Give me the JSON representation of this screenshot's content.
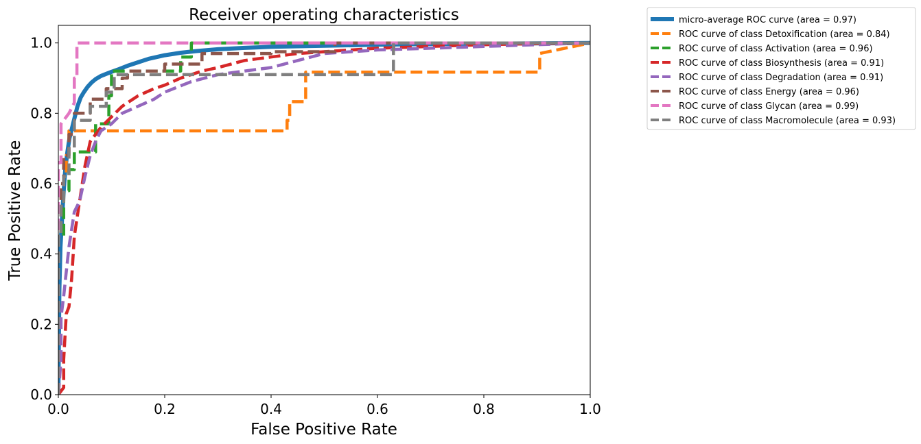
{
  "chart_data": {
    "type": "line",
    "title": "Receiver operating characteristics",
    "xlabel": "False Positive Rate",
    "ylabel": "True Positive Rate",
    "xlim": [
      0.0,
      1.0
    ],
    "ylim": [
      0.0,
      1.05
    ],
    "xticks": [
      "0.0",
      "0.2",
      "0.4",
      "0.6",
      "0.8",
      "1.0"
    ],
    "yticks": [
      "0.0",
      "0.2",
      "0.4",
      "0.6",
      "0.8",
      "1.0"
    ],
    "legend_position": "outside-top-right",
    "series": [
      {
        "name": "micro-average ROC curve (area = 0.97)",
        "color": "#1f77b4",
        "style": "solid",
        "x": [
          0.0,
          0.002,
          0.004,
          0.007,
          0.01,
          0.013,
          0.017,
          0.021,
          0.026,
          0.031,
          0.036,
          0.042,
          0.048,
          0.055,
          0.062,
          0.07,
          0.08,
          0.09,
          0.1,
          0.115,
          0.13,
          0.15,
          0.17,
          0.2,
          0.23,
          0.26,
          0.3,
          0.35,
          0.4,
          0.5,
          0.6,
          0.7,
          0.8,
          0.9,
          1.0
        ],
        "y": [
          0.0,
          0.3,
          0.42,
          0.5,
          0.58,
          0.64,
          0.69,
          0.73,
          0.76,
          0.79,
          0.82,
          0.845,
          0.86,
          0.875,
          0.887,
          0.897,
          0.906,
          0.912,
          0.918,
          0.926,
          0.935,
          0.945,
          0.955,
          0.965,
          0.972,
          0.977,
          0.982,
          0.986,
          0.989,
          0.992,
          0.995,
          0.997,
          0.998,
          0.999,
          1.0
        ]
      },
      {
        "name": "ROC curve of class Detoxification (area = 0.84)",
        "color": "#ff7f0e",
        "style": "dashed",
        "x": [
          0.0,
          0.0,
          0.005,
          0.005,
          0.01,
          0.01,
          0.015,
          0.015,
          0.02,
          0.02,
          0.43,
          0.43,
          0.435,
          0.435,
          0.465,
          0.465,
          0.905,
          0.905,
          1.0
        ],
        "y": [
          0.0,
          0.45,
          0.45,
          0.55,
          0.55,
          0.62,
          0.62,
          0.68,
          0.68,
          0.75,
          0.75,
          0.78,
          0.78,
          0.833,
          0.833,
          0.917,
          0.917,
          0.97,
          1.0
        ]
      },
      {
        "name": "ROC curve of class Activation (area = 0.96)",
        "color": "#2ca02c",
        "style": "dashed",
        "x": [
          0.0,
          0.0,
          0.01,
          0.01,
          0.02,
          0.02,
          0.03,
          0.03,
          0.07,
          0.07,
          0.095,
          0.095,
          0.1,
          0.1,
          0.23,
          0.23,
          0.25,
          0.25,
          1.0
        ],
        "y": [
          0.0,
          0.45,
          0.45,
          0.58,
          0.58,
          0.64,
          0.64,
          0.69,
          0.69,
          0.77,
          0.77,
          0.85,
          0.85,
          0.92,
          0.92,
          0.96,
          0.96,
          1.0,
          1.0
        ]
      },
      {
        "name": "ROC curve of class Biosynthesis (area = 0.91)",
        "color": "#d62728",
        "style": "dashed",
        "x": [
          0.0,
          0.01,
          0.01,
          0.015,
          0.02,
          0.025,
          0.03,
          0.035,
          0.04,
          0.045,
          0.05,
          0.06,
          0.08,
          0.1,
          0.12,
          0.15,
          0.18,
          0.2,
          0.23,
          0.27,
          0.3,
          0.35,
          0.4,
          0.45,
          0.5,
          0.6,
          0.7,
          0.8,
          0.9,
          1.0
        ],
        "y": [
          0.0,
          0.02,
          0.1,
          0.23,
          0.25,
          0.33,
          0.45,
          0.5,
          0.55,
          0.6,
          0.65,
          0.72,
          0.76,
          0.79,
          0.82,
          0.85,
          0.87,
          0.88,
          0.9,
          0.92,
          0.93,
          0.95,
          0.96,
          0.97,
          0.975,
          0.985,
          0.99,
          0.995,
          0.998,
          1.0
        ]
      },
      {
        "name": "ROC curve of class Degradation (area = 0.91)",
        "color": "#9467bd",
        "style": "dashed",
        "x": [
          0.0,
          0.005,
          0.005,
          0.01,
          0.015,
          0.02,
          0.025,
          0.03,
          0.04,
          0.05,
          0.06,
          0.07,
          0.08,
          0.1,
          0.12,
          0.15,
          0.18,
          0.2,
          0.25,
          0.3,
          0.35,
          0.4,
          0.45,
          0.5,
          0.6,
          0.7,
          0.8,
          0.9,
          1.0
        ],
        "y": [
          0.0,
          0.1,
          0.22,
          0.28,
          0.35,
          0.42,
          0.47,
          0.52,
          0.55,
          0.62,
          0.68,
          0.72,
          0.75,
          0.77,
          0.8,
          0.82,
          0.84,
          0.86,
          0.89,
          0.91,
          0.92,
          0.93,
          0.95,
          0.97,
          0.98,
          0.985,
          0.99,
          0.995,
          1.0
        ]
      },
      {
        "name": "ROC curve of class Energy (area = 0.96)",
        "color": "#8c564b",
        "style": "dashed",
        "x": [
          0.0,
          0.0,
          0.005,
          0.005,
          0.01,
          0.01,
          0.02,
          0.02,
          0.03,
          0.03,
          0.06,
          0.06,
          0.09,
          0.09,
          0.12,
          0.12,
          0.13,
          0.13,
          0.2,
          0.2,
          0.27,
          0.27,
          0.4,
          0.4,
          0.52,
          0.52,
          1.0
        ],
        "y": [
          0.0,
          0.5,
          0.5,
          0.6,
          0.6,
          0.68,
          0.68,
          0.74,
          0.74,
          0.8,
          0.8,
          0.84,
          0.84,
          0.87,
          0.87,
          0.9,
          0.9,
          0.92,
          0.92,
          0.94,
          0.94,
          0.97,
          0.97,
          0.975,
          0.975,
          1.0,
          1.0
        ]
      },
      {
        "name": "ROC curve of class Glycan (area = 0.99)",
        "color": "#e377c2",
        "style": "dashed",
        "x": [
          0.0,
          0.0,
          0.005,
          0.005,
          0.01,
          0.02,
          0.03,
          0.03,
          0.035,
          0.035,
          1.0
        ],
        "y": [
          0.0,
          0.66,
          0.66,
          0.77,
          0.78,
          0.8,
          0.83,
          0.9,
          0.9,
          1.0,
          1.0
        ]
      },
      {
        "name": "ROC curve of class Macromolecule (area = 0.93)",
        "color": "#7f7f7f",
        "style": "dashed",
        "x": [
          0.0,
          0.0,
          0.005,
          0.005,
          0.01,
          0.01,
          0.02,
          0.02,
          0.03,
          0.03,
          0.06,
          0.06,
          0.09,
          0.09,
          0.105,
          0.105,
          0.63,
          0.63,
          1.0
        ],
        "y": [
          0.0,
          0.45,
          0.45,
          0.55,
          0.55,
          0.62,
          0.62,
          0.7,
          0.7,
          0.78,
          0.78,
          0.82,
          0.82,
          0.86,
          0.86,
          0.91,
          0.91,
          1.0,
          1.0
        ]
      }
    ]
  }
}
